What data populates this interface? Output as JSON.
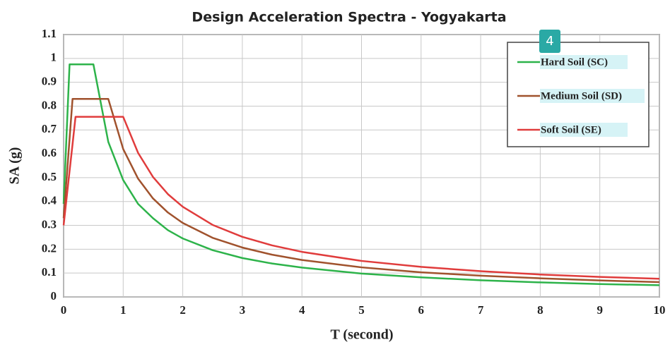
{
  "chart_data": {
    "type": "line",
    "title": "Design Acceleration Spectra - Yogyakarta",
    "xlabel": "T (second)",
    "ylabel": "SA (g)",
    "annotation": "4",
    "x": [
      0,
      0.1,
      0.15,
      0.2,
      0.5,
      0.75,
      1,
      1.25,
      1.5,
      1.75,
      2,
      2.5,
      3,
      3.5,
      4,
      5,
      6,
      7,
      8,
      9,
      10
    ],
    "series": [
      {
        "name": "Hard Soil (SC)",
        "color": "#2db34a",
        "values": [
          0.39,
          0.975,
          0.975,
          0.975,
          0.975,
          0.65,
          0.49,
          0.39,
          0.33,
          0.28,
          0.245,
          0.196,
          0.163,
          0.14,
          0.123,
          0.098,
          0.082,
          0.07,
          0.061,
          0.054,
          0.049
        ]
      },
      {
        "name": "Medium Soil (SD)",
        "color": "#a0522d",
        "values": [
          0.33,
          0.663,
          0.83,
          0.83,
          0.83,
          0.83,
          0.62,
          0.496,
          0.413,
          0.354,
          0.31,
          0.248,
          0.207,
          0.177,
          0.155,
          0.124,
          0.103,
          0.089,
          0.078,
          0.069,
          0.062
        ]
      },
      {
        "name": "Soft Soil (SE)",
        "color": "#e03c3c",
        "values": [
          0.3,
          0.528,
          0.64,
          0.755,
          0.755,
          0.755,
          0.755,
          0.604,
          0.503,
          0.431,
          0.378,
          0.302,
          0.252,
          0.216,
          0.189,
          0.151,
          0.126,
          0.108,
          0.094,
          0.084,
          0.076
        ]
      }
    ],
    "xlim": [
      0,
      10
    ],
    "xticks": [
      0,
      1,
      2,
      3,
      4,
      5,
      6,
      7,
      8,
      9,
      10
    ],
    "ylim": [
      0,
      1.1
    ],
    "yticks": [
      0,
      0.1,
      0.2,
      0.3,
      0.4,
      0.5,
      0.6,
      0.7,
      0.8,
      0.9,
      1,
      1.1
    ],
    "grid": true,
    "legend": "upper right"
  }
}
